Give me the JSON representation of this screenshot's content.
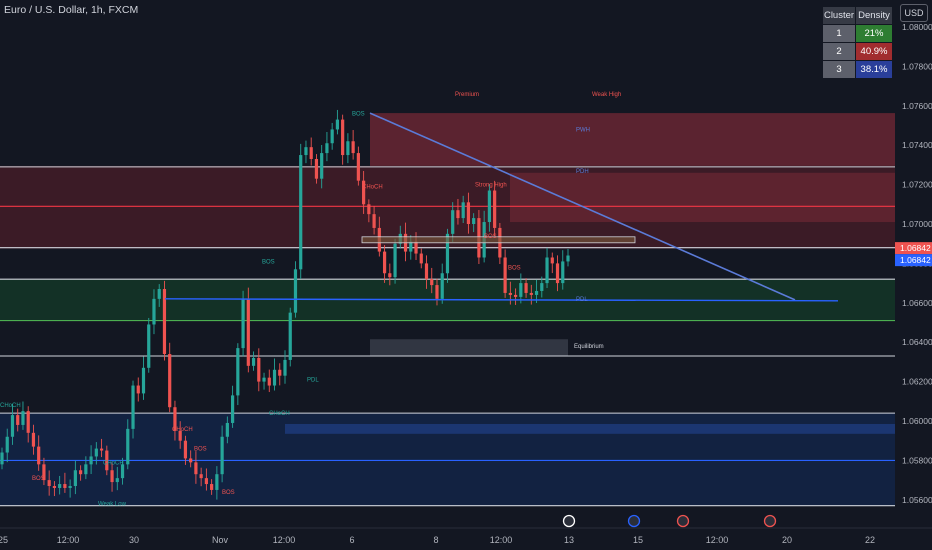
{
  "header": {
    "title": "Euro / U.S. Dollar, 1h, FXCM",
    "currency": "USD"
  },
  "cluster_table": {
    "headers": [
      "Cluster",
      "Density"
    ],
    "rows": [
      {
        "cluster": "1",
        "density": "21%",
        "color": "#2e7d32"
      },
      {
        "cluster": "2",
        "density": "40.9%",
        "color": "#a12d2f"
      },
      {
        "cluster": "3",
        "density": "38.1%",
        "color": "#2a3f9a"
      }
    ]
  },
  "colors": {
    "up": "#26a69a",
    "down": "#ef5350",
    "bg": "#131722",
    "trend": "#5b7bd8"
  },
  "chart_data": {
    "type": "candlestick",
    "title": "Euro / U.S. Dollar, 1h, FXCM",
    "y_axis": {
      "range": [
        1.0547,
        1.0818
      ],
      "ticks": [
        "1.08000",
        "1.07800",
        "1.07600",
        "1.07400",
        "1.07200",
        "1.07000",
        "1.06800",
        "1.06600",
        "1.06400",
        "1.06200",
        "1.06000",
        "1.05800",
        "1.05600"
      ],
      "price_labels": [
        {
          "value": 1.06842,
          "text": "1.06842",
          "color": "#ef5350"
        },
        {
          "value": 1.06842,
          "text": "1.06842",
          "color": "#2962ff"
        }
      ]
    },
    "x_axis": {
      "ticks": [
        "25",
        "12:00",
        "30",
        "Nov",
        "12:00",
        "6",
        "8",
        "12:00",
        "13",
        "15",
        "12:00",
        "20",
        "22"
      ]
    },
    "series": [
      {
        "name": "",
        "close": [
          1.0584,
          1.0592,
          1.0603,
          1.0598,
          1.0605,
          1.0594,
          1.0587,
          1.0578,
          1.057,
          1.0567,
          1.0566,
          1.0568,
          1.0566,
          1.0567,
          1.0575,
          1.0573,
          1.0578,
          1.0582,
          1.0586,
          1.0585,
          1.0575,
          1.0569,
          1.0571,
          1.0578,
          1.0596,
          1.0618,
          1.0614,
          1.0627,
          1.0649,
          1.0662,
          1.0667,
          1.0634,
          1.0607,
          1.0595,
          1.059,
          1.0581,
          1.0579,
          1.0573,
          1.0571,
          1.0568,
          1.0565,
          1.0573,
          1.0592,
          1.0599,
          1.0613,
          1.0637,
          1.0662,
          1.0628,
          1.0632,
          1.062,
          1.0622,
          1.0618,
          1.0626,
          1.0623,
          1.0631,
          1.0655,
          1.0677,
          1.0735,
          1.0739,
          1.0733,
          1.0723,
          1.0736,
          1.0741,
          1.0748,
          1.0753,
          1.0735,
          1.0742,
          1.0736,
          1.0722,
          1.071,
          1.0705,
          1.0698,
          1.0686,
          1.0675,
          1.0673,
          1.069,
          1.0695,
          1.0686,
          1.0691,
          1.0685,
          1.068,
          1.0672,
          1.0669,
          1.0662,
          1.0675,
          1.0695,
          1.0707,
          1.0703,
          1.0711,
          1.07,
          1.0703,
          1.0683,
          1.0701,
          1.0717,
          1.0698,
          1.0683,
          1.0665,
          1.0664,
          1.0663,
          1.067,
          1.0665,
          1.0664,
          1.0666,
          1.067,
          1.0683,
          1.068,
          1.067,
          1.0681,
          1.0684
        ]
      }
    ],
    "levels": [
      1.0729,
      1.0709,
      1.0688,
      1.0672,
      1.0651,
      1.0633,
      1.0604,
      1.058,
      1.0557
    ],
    "zones": [
      {
        "label": "Premium",
        "from": 1.07563,
        "to": 1.07295
      },
      {
        "label": "Equilibrium",
        "from": 1.06415,
        "to": 1.0633
      }
    ],
    "annotations": [
      "Premium",
      "Weak High",
      "PWH",
      "PDH",
      "PDL",
      "Equilibrium",
      "BOS",
      "CHoCH",
      "Strong High",
      "Strong Low",
      "PDL",
      "Weak Low"
    ]
  }
}
